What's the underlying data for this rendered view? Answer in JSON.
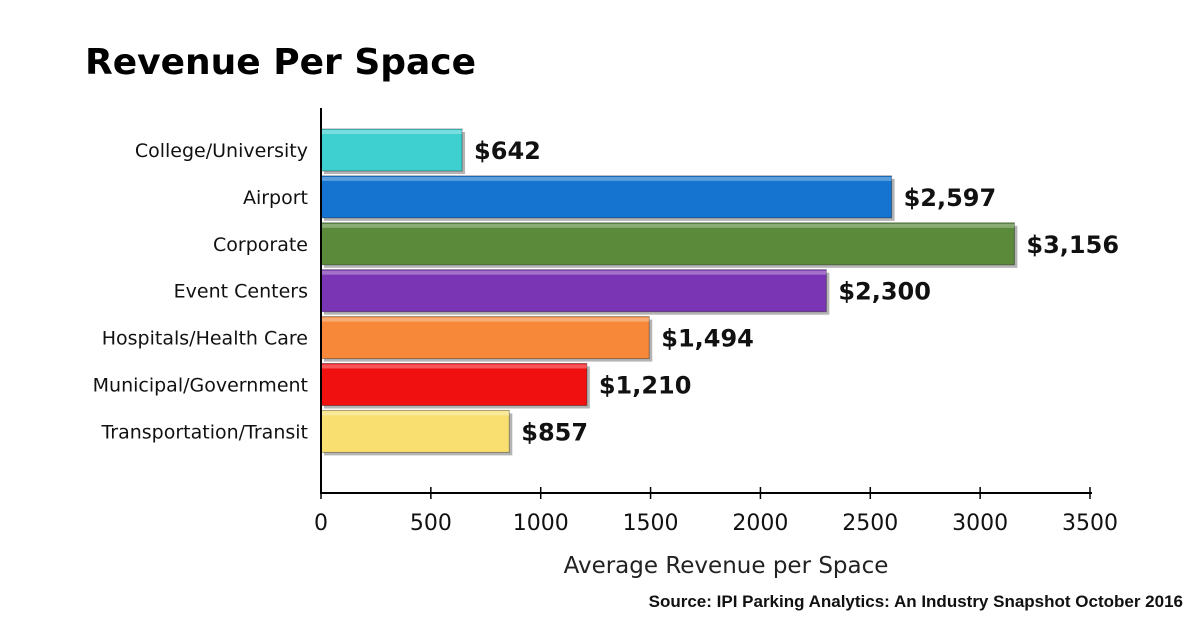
{
  "chart_data": {
    "type": "bar",
    "orientation": "horizontal",
    "title": "Revenue Per Space",
    "xlabel": "Average Revenue per Space",
    "ylabel": "",
    "source": "Source: IPI Parking Analytics: An Industry Snapshot October 2016",
    "categories": [
      "College/University",
      "Airport",
      "Corporate",
      "Event Centers",
      "Hospitals/Health Care",
      "Municipal/Government",
      "Transportation/Transit"
    ],
    "values": [
      642,
      2597,
      3156,
      2300,
      1494,
      1210,
      857
    ],
    "data_labels": [
      "$642",
      "$2,597",
      "$3,156",
      "$2,300",
      "$1,494",
      "$1,210",
      "$857"
    ],
    "colors": [
      "#3ecfd0",
      "#1474d0",
      "#5a8a3a",
      "#7a35b5",
      "#f7883a",
      "#f01010",
      "#f8df70"
    ],
    "xlim": [
      0,
      3500
    ],
    "xticks": [
      "0",
      "500",
      "1000",
      "1500",
      "2000",
      "2500",
      "3000",
      "3500"
    ],
    "grid": false,
    "legend": "none"
  }
}
